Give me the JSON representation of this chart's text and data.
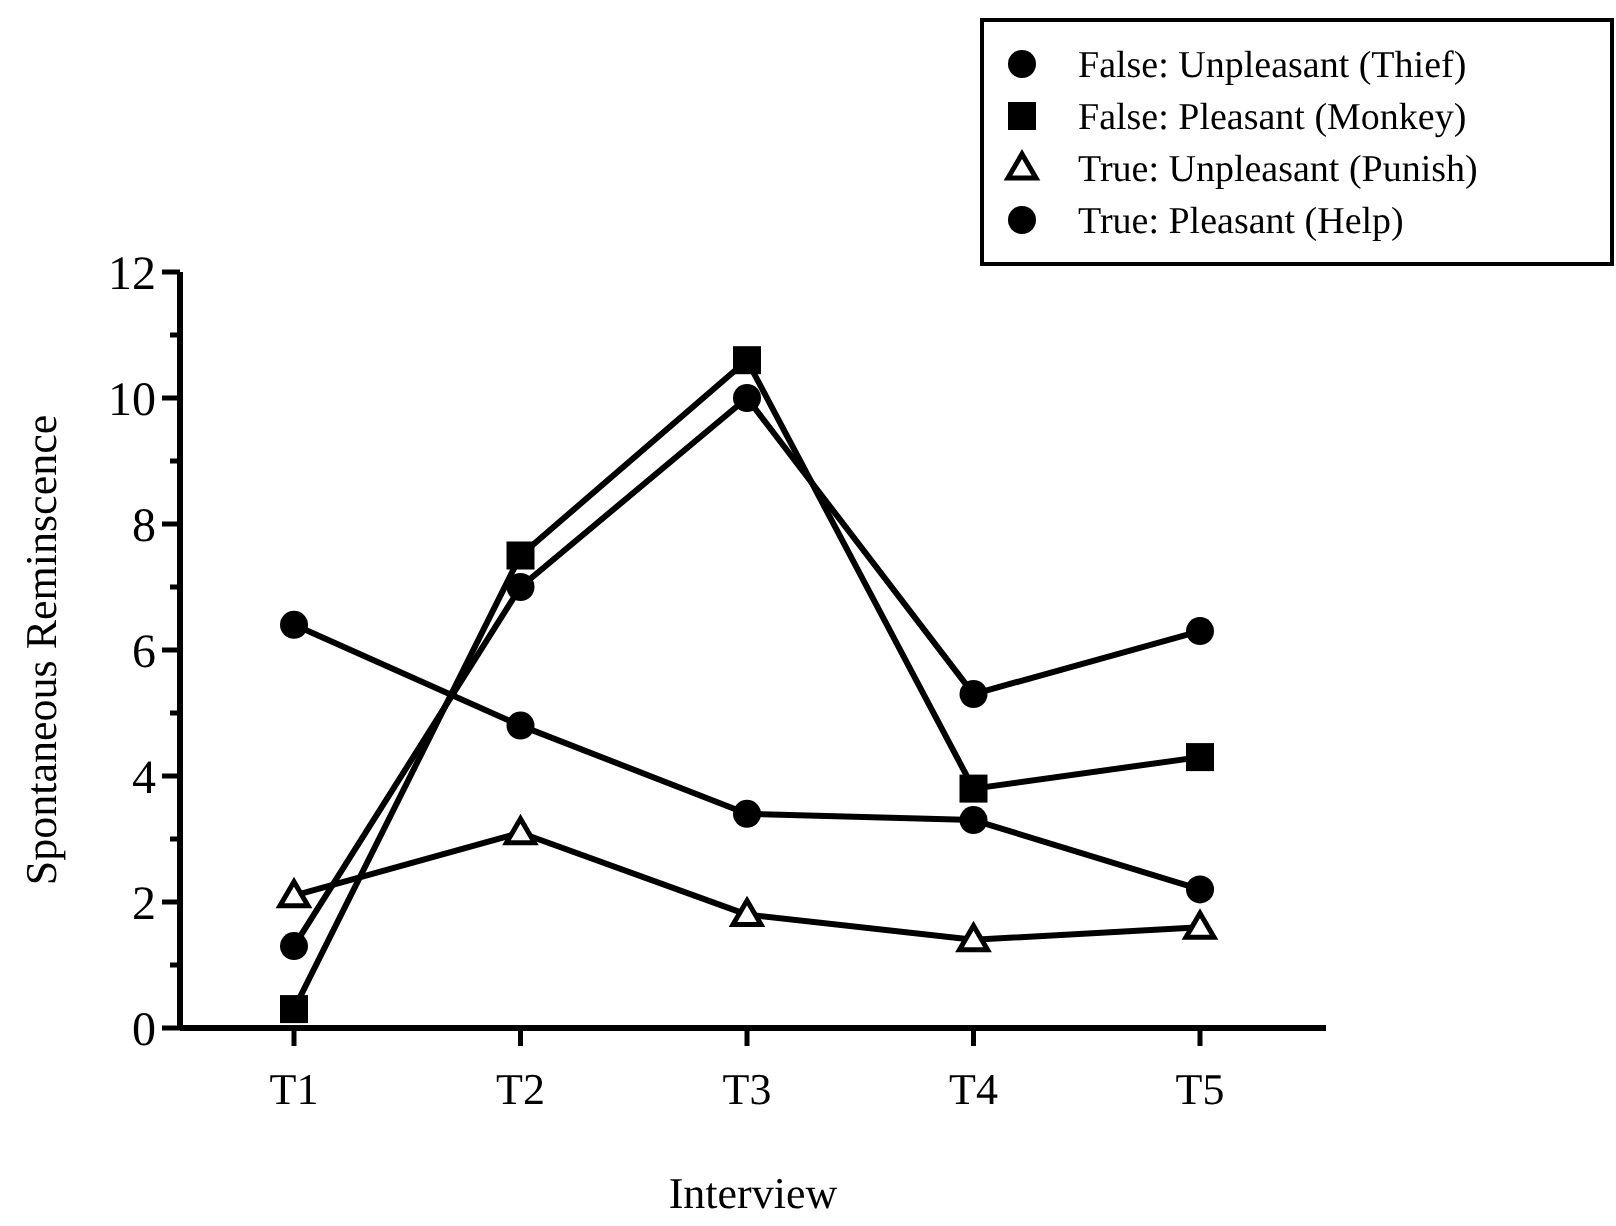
{
  "chart_data": {
    "type": "line",
    "xlabel": "Interview",
    "ylabel": "Spontaneous Reminscence",
    "categories": [
      "T1",
      "T2",
      "T3",
      "T4",
      "T5"
    ],
    "ylim": [
      0,
      12
    ],
    "yticks": [
      0,
      {
        "value": 1,
        "label": null
      },
      2,
      {
        "value": 3,
        "label": null
      },
      4,
      {
        "value": 5,
        "label": null
      },
      6,
      {
        "value": 7,
        "label": null
      },
      8,
      {
        "value": 9,
        "label": null
      },
      10,
      {
        "value": 11,
        "label": null
      },
      12
    ],
    "grid": false,
    "legend": "top right",
    "line_style": "solid",
    "series": [
      {
        "name": "False: Unpleasant (Thief)",
        "color": "#000000",
        "marker": "circle",
        "values": [
          1.3,
          7.0,
          10.0,
          5.3,
          6.3
        ]
      },
      {
        "name": "False: Pleasant (Monkey)",
        "color": "#000000",
        "marker": "square",
        "values": [
          0.3,
          7.5,
          10.6,
          3.8,
          4.3
        ]
      },
      {
        "name": "True: Unpleasant (Punish)",
        "color": "#000000",
        "marker": "triangle",
        "values": [
          2.1,
          3.1,
          1.8,
          1.4,
          1.6
        ]
      },
      {
        "name": "True: Pleasant (Help)",
        "color": "#000000",
        "marker": "circle",
        "values": [
          6.4,
          4.8,
          3.4,
          3.3,
          2.2
        ]
      }
    ]
  }
}
